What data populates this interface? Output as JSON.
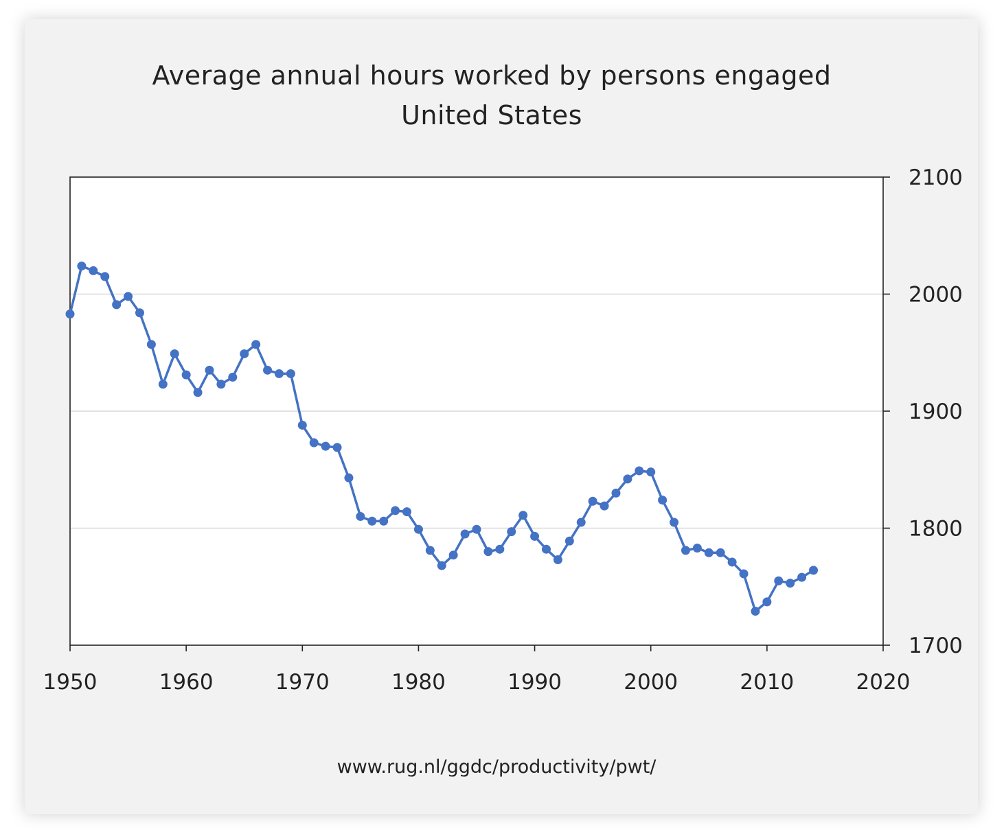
{
  "chart_data": {
    "type": "line",
    "title": "Average annual hours worked by persons engaged",
    "subtitle": "United States",
    "source": "www.rug.nl/ggdc/productivity/pwt/",
    "xlim": [
      1950,
      2020
    ],
    "ylim": [
      1700,
      2100
    ],
    "xticks": [
      1950,
      1960,
      1970,
      1980,
      1990,
      2000,
      2010,
      2020
    ],
    "yticks": [
      1700,
      1800,
      1900,
      2000,
      2100
    ],
    "y_axis_side": "right",
    "grid": "horizontal",
    "line_color": "#4472c4",
    "series": [
      {
        "x": [
          1950,
          1951,
          1952,
          1953,
          1954,
          1955,
          1956,
          1957,
          1958,
          1959,
          1960,
          1961,
          1962,
          1963,
          1964,
          1965,
          1966,
          1967,
          1968,
          1969,
          1970,
          1971,
          1972,
          1973,
          1974,
          1975,
          1976,
          1977,
          1978,
          1979,
          1980,
          1981,
          1982,
          1983,
          1984,
          1985,
          1986,
          1987,
          1988,
          1989,
          1990,
          1991,
          1992,
          1993,
          1994,
          1995,
          1996,
          1997,
          1998,
          1999,
          2000,
          2001,
          2002,
          2003,
          2004,
          2005,
          2006,
          2007,
          2008,
          2009,
          2010,
          2011,
          2012,
          2013,
          2014
        ],
        "values": [
          1983,
          2024,
          2020,
          2015,
          1991,
          1998,
          1984,
          1957,
          1923,
          1949,
          1931,
          1916,
          1935,
          1923,
          1929,
          1949,
          1957,
          1935,
          1932,
          1932,
          1888,
          1873,
          1870,
          1869,
          1843,
          1810,
          1806,
          1806,
          1815,
          1814,
          1799,
          1781,
          1768,
          1777,
          1795,
          1799,
          1780,
          1782,
          1797,
          1811,
          1793,
          1782,
          1773,
          1789,
          1805,
          1823,
          1819,
          1830,
          1842,
          1849,
          1848,
          1824,
          1805,
          1781,
          1783,
          1779,
          1779,
          1771,
          1761,
          1729,
          1737,
          1755,
          1753,
          1758,
          1764
        ]
      }
    ]
  }
}
